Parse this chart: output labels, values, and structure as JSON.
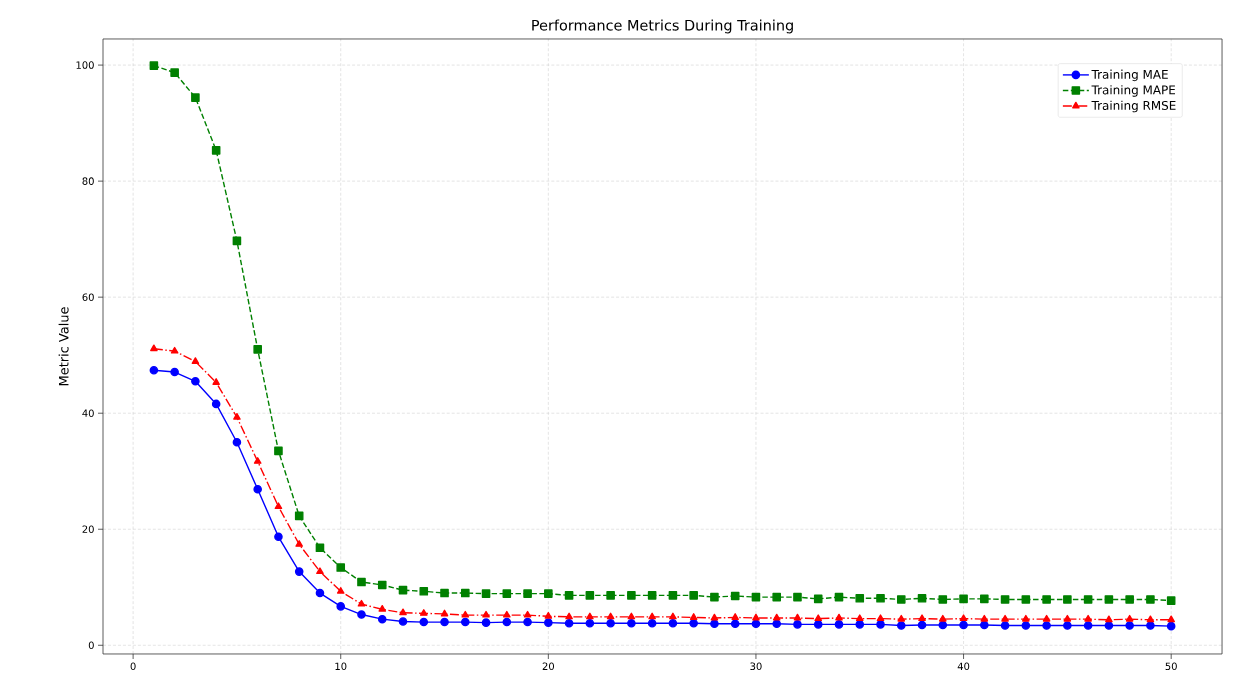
{
  "chart_data": {
    "type": "line",
    "title": "Performance Metrics During Training",
    "ylabel": "Metric Value",
    "x": [
      1,
      2,
      3,
      4,
      5,
      6,
      7,
      8,
      9,
      10,
      11,
      12,
      13,
      14,
      15,
      16,
      17,
      18,
      19,
      20,
      21,
      22,
      23,
      24,
      25,
      26,
      27,
      28,
      29,
      30,
      31,
      32,
      33,
      34,
      35,
      36,
      37,
      38,
      39,
      40,
      41,
      42,
      43,
      44,
      45,
      46,
      47,
      48,
      49,
      50
    ],
    "series": [
      {
        "name": "Training MAE",
        "color": "#0000ff",
        "marker": "circle",
        "line_style": "solid",
        "values": [
          47.4,
          47.1,
          45.5,
          41.6,
          35.0,
          26.9,
          18.7,
          12.7,
          9.0,
          6.7,
          5.3,
          4.5,
          4.1,
          4.0,
          4.0,
          4.0,
          3.9,
          4.0,
          4.0,
          3.9,
          3.8,
          3.8,
          3.8,
          3.8,
          3.8,
          3.8,
          3.8,
          3.7,
          3.7,
          3.7,
          3.7,
          3.6,
          3.6,
          3.6,
          3.6,
          3.6,
          3.4,
          3.5,
          3.5,
          3.5,
          3.5,
          3.4,
          3.4,
          3.4,
          3.4,
          3.4,
          3.4,
          3.4,
          3.4,
          3.3
        ]
      },
      {
        "name": "Training MAPE",
        "color": "#008000",
        "marker": "square",
        "line_style": "dashed",
        "values": [
          99.9,
          98.7,
          94.4,
          85.3,
          69.7,
          51.0,
          33.5,
          22.3,
          16.8,
          13.4,
          10.9,
          10.4,
          9.5,
          9.3,
          9.0,
          9.0,
          8.9,
          8.9,
          8.9,
          8.9,
          8.6,
          8.6,
          8.6,
          8.6,
          8.6,
          8.6,
          8.6,
          8.3,
          8.5,
          8.3,
          8.3,
          8.3,
          8.0,
          8.3,
          8.1,
          8.1,
          7.9,
          8.1,
          7.9,
          8.0,
          8.0,
          7.9,
          7.9,
          7.9,
          7.9,
          7.9,
          7.9,
          7.9,
          7.9,
          7.7
        ]
      },
      {
        "name": "Training RMSE",
        "color": "#ff0000",
        "marker": "triangle",
        "line_style": "dashdot",
        "values": [
          51.1,
          50.7,
          48.9,
          45.3,
          39.3,
          31.7,
          23.9,
          17.4,
          12.7,
          9.3,
          7.1,
          6.2,
          5.6,
          5.5,
          5.4,
          5.2,
          5.2,
          5.2,
          5.2,
          5.0,
          4.9,
          4.9,
          4.9,
          4.9,
          4.9,
          4.9,
          4.8,
          4.7,
          4.8,
          4.7,
          4.7,
          4.7,
          4.6,
          4.7,
          4.6,
          4.6,
          4.5,
          4.6,
          4.5,
          4.6,
          4.5,
          4.5,
          4.5,
          4.5,
          4.5,
          4.5,
          4.4,
          4.5,
          4.4,
          4.4
        ]
      }
    ],
    "xlim": [
      -1.45,
      52.45
    ],
    "ylim": [
      -1.5,
      104.5
    ],
    "xticks": [
      0,
      10,
      20,
      30,
      40,
      50
    ],
    "yticks": [
      0,
      20,
      40,
      60,
      80,
      100
    ],
    "grid": true,
    "legend": "top right"
  }
}
